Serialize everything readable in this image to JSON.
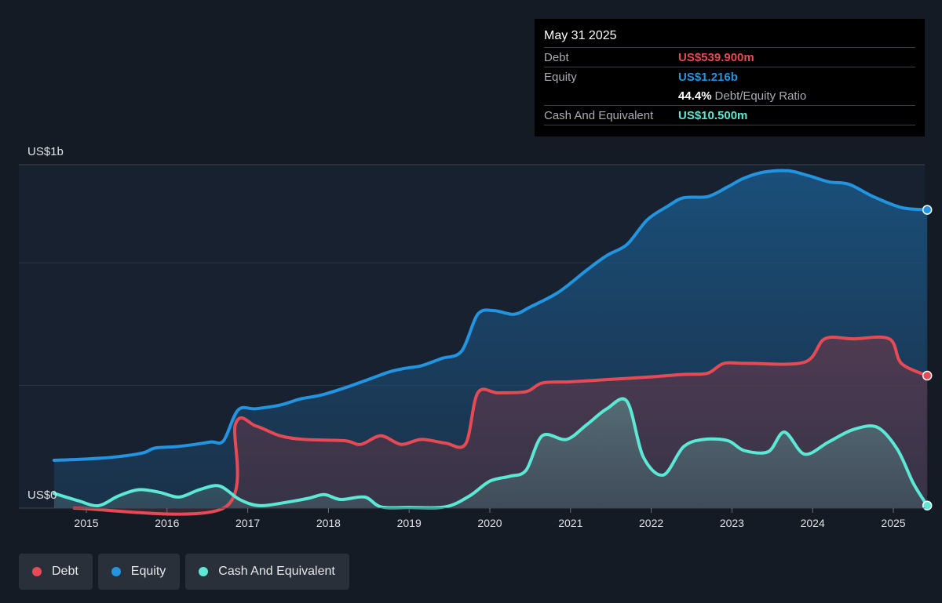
{
  "tooltip": {
    "date": "May 31 2025",
    "debt_label": "Debt",
    "debt_value": "US$539.900m",
    "equity_label": "Equity",
    "equity_value": "US$1.216b",
    "ratio_value": "44.4%",
    "ratio_label": "Debt/Equity Ratio",
    "cash_label": "Cash And Equivalent",
    "cash_value": "US$10.500m"
  },
  "legend": [
    {
      "label": "Debt",
      "color": "#e64a55"
    },
    {
      "label": "Equity",
      "color": "#2394df"
    },
    {
      "label": "Cash And Equivalent",
      "color": "#5ce8d4"
    }
  ],
  "chart_data": {
    "type": "area",
    "ylabel_top": "US$1b",
    "ylabel_bottom": "US$0",
    "ylim": [
      0,
      1.4
    ],
    "yunit": "US$ billions",
    "xlim": [
      2014.6,
      2025.42
    ],
    "xticks": [
      "2015",
      "2016",
      "2017",
      "2018",
      "2019",
      "2020",
      "2021",
      "2022",
      "2023",
      "2024",
      "2025"
    ],
    "grid": true,
    "legend_position": "bottom-left",
    "series": [
      {
        "name": "Equity",
        "color": "#2394df",
        "points": [
          [
            2014.6,
            0.195
          ],
          [
            2015.0,
            0.2
          ],
          [
            2015.4,
            0.21
          ],
          [
            2015.7,
            0.225
          ],
          [
            2015.85,
            0.245
          ],
          [
            2016.1,
            0.25
          ],
          [
            2016.35,
            0.26
          ],
          [
            2016.55,
            0.27
          ],
          [
            2016.7,
            0.275
          ],
          [
            2016.88,
            0.4
          ],
          [
            2017.1,
            0.405
          ],
          [
            2017.4,
            0.42
          ],
          [
            2017.65,
            0.445
          ],
          [
            2017.9,
            0.46
          ],
          [
            2018.2,
            0.49
          ],
          [
            2018.5,
            0.525
          ],
          [
            2018.75,
            0.555
          ],
          [
            2018.95,
            0.57
          ],
          [
            2019.15,
            0.58
          ],
          [
            2019.4,
            0.61
          ],
          [
            2019.65,
            0.64
          ],
          [
            2019.85,
            0.79
          ],
          [
            2020.05,
            0.805
          ],
          [
            2020.3,
            0.79
          ],
          [
            2020.5,
            0.82
          ],
          [
            2020.85,
            0.88
          ],
          [
            2021.2,
            0.97
          ],
          [
            2021.45,
            1.03
          ],
          [
            2021.7,
            1.075
          ],
          [
            2021.95,
            1.175
          ],
          [
            2022.2,
            1.23
          ],
          [
            2022.4,
            1.265
          ],
          [
            2022.7,
            1.27
          ],
          [
            2022.95,
            1.31
          ],
          [
            2023.15,
            1.345
          ],
          [
            2023.4,
            1.37
          ],
          [
            2023.7,
            1.375
          ],
          [
            2023.95,
            1.355
          ],
          [
            2024.2,
            1.33
          ],
          [
            2024.45,
            1.32
          ],
          [
            2024.75,
            1.27
          ],
          [
            2025.1,
            1.225
          ],
          [
            2025.42,
            1.216
          ]
        ]
      },
      {
        "name": "Debt",
        "color": "#e64a55",
        "points": [
          [
            2014.85,
            0.0
          ],
          [
            2016.7,
            0.0
          ],
          [
            2016.85,
            0.345
          ],
          [
            2017.1,
            0.335
          ],
          [
            2017.4,
            0.295
          ],
          [
            2017.7,
            0.28
          ],
          [
            2018.2,
            0.275
          ],
          [
            2018.4,
            0.26
          ],
          [
            2018.65,
            0.295
          ],
          [
            2018.9,
            0.26
          ],
          [
            2019.15,
            0.28
          ],
          [
            2019.45,
            0.265
          ],
          [
            2019.7,
            0.262
          ],
          [
            2019.85,
            0.47
          ],
          [
            2020.1,
            0.47
          ],
          [
            2020.45,
            0.475
          ],
          [
            2020.65,
            0.51
          ],
          [
            2021.0,
            0.515
          ],
          [
            2021.5,
            0.525
          ],
          [
            2022.0,
            0.535
          ],
          [
            2022.4,
            0.545
          ],
          [
            2022.7,
            0.55
          ],
          [
            2022.9,
            0.59
          ],
          [
            2023.2,
            0.59
          ],
          [
            2023.9,
            0.595
          ],
          [
            2024.15,
            0.69
          ],
          [
            2024.5,
            0.69
          ],
          [
            2024.95,
            0.69
          ],
          [
            2025.1,
            0.59
          ],
          [
            2025.42,
            0.54
          ]
        ]
      },
      {
        "name": "Cash And Equivalent",
        "color": "#5ce8d4",
        "points": [
          [
            2014.6,
            0.06
          ],
          [
            2014.9,
            0.03
          ],
          [
            2015.15,
            0.01
          ],
          [
            2015.4,
            0.05
          ],
          [
            2015.65,
            0.075
          ],
          [
            2015.9,
            0.065
          ],
          [
            2016.15,
            0.045
          ],
          [
            2016.4,
            0.075
          ],
          [
            2016.65,
            0.09
          ],
          [
            2016.9,
            0.035
          ],
          [
            2017.15,
            0.01
          ],
          [
            2017.5,
            0.025
          ],
          [
            2017.75,
            0.04
          ],
          [
            2017.95,
            0.055
          ],
          [
            2018.15,
            0.035
          ],
          [
            2018.45,
            0.045
          ],
          [
            2018.65,
            0.005
          ],
          [
            2019.0,
            0.003
          ],
          [
            2019.45,
            0.005
          ],
          [
            2019.75,
            0.05
          ],
          [
            2020.0,
            0.11
          ],
          [
            2020.25,
            0.13
          ],
          [
            2020.45,
            0.155
          ],
          [
            2020.65,
            0.295
          ],
          [
            2020.95,
            0.28
          ],
          [
            2021.2,
            0.34
          ],
          [
            2021.45,
            0.405
          ],
          [
            2021.7,
            0.435
          ],
          [
            2021.9,
            0.21
          ],
          [
            2022.15,
            0.135
          ],
          [
            2022.4,
            0.25
          ],
          [
            2022.65,
            0.28
          ],
          [
            2022.95,
            0.275
          ],
          [
            2023.15,
            0.235
          ],
          [
            2023.45,
            0.23
          ],
          [
            2023.65,
            0.31
          ],
          [
            2023.9,
            0.22
          ],
          [
            2024.2,
            0.27
          ],
          [
            2024.5,
            0.32
          ],
          [
            2024.8,
            0.33
          ],
          [
            2025.05,
            0.24
          ],
          [
            2025.25,
            0.1
          ],
          [
            2025.42,
            0.0105
          ]
        ]
      }
    ]
  }
}
